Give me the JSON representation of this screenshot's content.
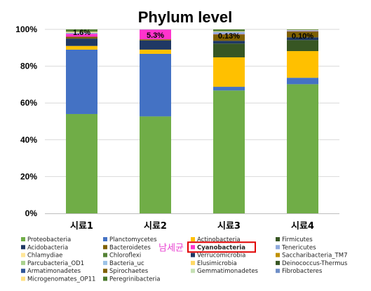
{
  "chart_data": {
    "type": "bar",
    "stacked": true,
    "title": "Phylum level",
    "categories": [
      "시료1",
      "시료2",
      "시료3",
      "시료4"
    ],
    "y_ticks": [
      "0%",
      "20%",
      "40%",
      "60%",
      "80%",
      "100%"
    ],
    "ylim": [
      0,
      100
    ],
    "grid": true,
    "legend_position": "bottom",
    "series": [
      {
        "name": "Proteobacteria",
        "color": "#70ad47",
        "values": [
          54.0,
          52.7,
          66.8,
          70.2
        ]
      },
      {
        "name": "Planctomycetes",
        "color": "#4472c4",
        "values": [
          35.0,
          34.0,
          2.0,
          3.5
        ]
      },
      {
        "name": "Actinobacteria",
        "color": "#ffc000",
        "values": [
          2.0,
          2.3,
          16.0,
          14.5
        ]
      },
      {
        "name": "Firmicutes",
        "color": "#375623",
        "values": [
          0.0,
          0.0,
          7.5,
          6.0
        ]
      },
      {
        "name": "Acidobacteria",
        "color": "#1f3864",
        "values": [
          4.0,
          5.0,
          1.5,
          1.5
        ]
      },
      {
        "name": "Bacteroidetes",
        "color": "#7f6000",
        "values": [
          1.0,
          0.6,
          3.5,
          3.2
        ]
      },
      {
        "name": "Cyanobacteria",
        "color": "#ff33cc",
        "values": [
          1.6,
          5.3,
          0.13,
          0.1
        ]
      },
      {
        "name": "Tenericutes",
        "color": "#8faadc",
        "values": [
          0.6,
          0.1,
          1.2,
          0.5
        ]
      },
      {
        "name": "Chlamydiae",
        "color": "#ffe699",
        "values": [
          0.5,
          0.0,
          0.3,
          0.2
        ]
      },
      {
        "name": "Chloroflexi",
        "color": "#548235",
        "values": [
          1.3,
          0.0,
          1.07,
          0.3
        ]
      }
    ],
    "data_labels": [
      {
        "category": "시료1",
        "text": "1.6%"
      },
      {
        "category": "시료2",
        "text": "5.3%"
      },
      {
        "category": "시료3",
        "text": "0.13%"
      },
      {
        "category": "시료4",
        "text": "0.10%"
      }
    ],
    "legend": [
      {
        "name": "Proteobacteria",
        "color": "#70ad47"
      },
      {
        "name": "Planctomycetes",
        "color": "#4472c4"
      },
      {
        "name": "Actinobacteria",
        "color": "#ffc000"
      },
      {
        "name": "Firmicutes",
        "color": "#375623"
      },
      {
        "name": "Acidobacteria",
        "color": "#1f3864"
      },
      {
        "name": "Bacteroidetes",
        "color": "#7f6000"
      },
      {
        "name": "Cyanobacteria",
        "color": "#ff33cc",
        "highlight": true
      },
      {
        "name": "Tenericutes",
        "color": "#8faadc"
      },
      {
        "name": "Chlamydiae",
        "color": "#ffe699"
      },
      {
        "name": "Chloroflexi",
        "color": "#548235"
      },
      {
        "name": "Verrucomicrobia",
        "color": "#203864"
      },
      {
        "name": "Saccharibacteria_TM7",
        "color": "#bf9000"
      },
      {
        "name": "Parcubacteria_OD1",
        "color": "#a9d18e"
      },
      {
        "name": "Bacteria_uc",
        "color": "#9dc3e6"
      },
      {
        "name": "Elusimicrobia",
        "color": "#ffd966"
      },
      {
        "name": "Deinococcus-Thermus",
        "color": "#385723"
      },
      {
        "name": "Armatimonadetes",
        "color": "#2f5597"
      },
      {
        "name": "Spirochaetes",
        "color": "#806000"
      },
      {
        "name": "Gemmatimonadetes",
        "color": "#c5e0b4"
      },
      {
        "name": "Fibrobacteres",
        "color": "#6f8fc7"
      },
      {
        "name": "Microgenomates_OP11",
        "color": "#ffe082"
      },
      {
        "name": "Peregrinibacteria",
        "color": "#4a7a2c"
      }
    ],
    "annotation": "남세균"
  }
}
